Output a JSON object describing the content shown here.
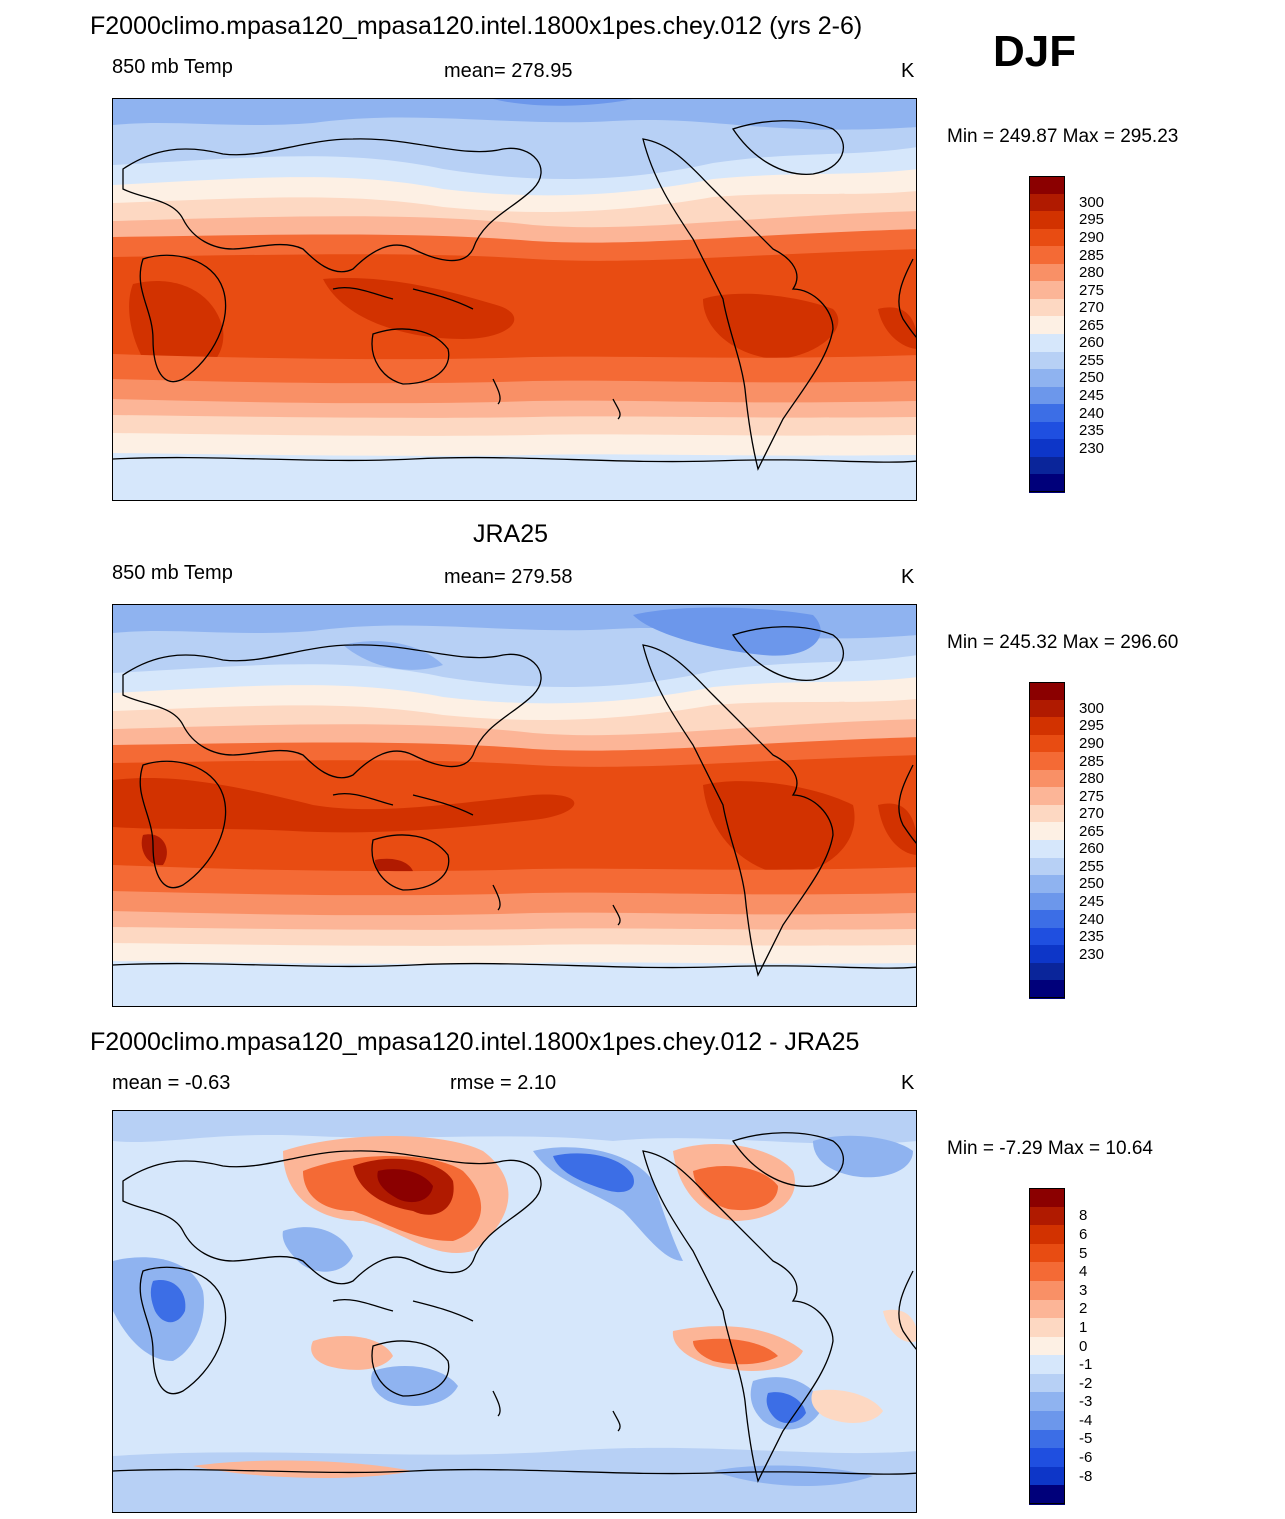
{
  "season": "DJF",
  "panels": [
    {
      "title": "F2000climo.mpasa120_mpasa120.intel.1800x1pes.chey.012 (yrs 2-6)",
      "left_label": "850 mb Temp",
      "center_label": "mean= 278.95",
      "units": "K",
      "minmax": "Min = 249.87 Max = 295.23"
    },
    {
      "title": "JRA25",
      "left_label": "850 mb Temp",
      "center_label": "mean= 279.58",
      "units": "K",
      "minmax": "Min = 245.32 Max = 296.60"
    },
    {
      "title": "F2000climo.mpasa120_mpasa120.intel.1800x1pes.chey.012 - JRA25",
      "left_label": "mean =  -0.63",
      "center_label": "rmse =   2.10",
      "units": "K",
      "minmax": "Min =  -7.29 Max =  10.64"
    }
  ],
  "colorbars": {
    "temperature": {
      "labels": [
        "300",
        "295",
        "290",
        "285",
        "280",
        "275",
        "270",
        "265",
        "260",
        "255",
        "250",
        "245",
        "240",
        "235",
        "230"
      ],
      "colors": [
        "#8b0000",
        "#b01a00",
        "#d23200",
        "#e84c12",
        "#f46a35",
        "#f99066",
        "#fcb597",
        "#fdd8c2",
        "#fdf0e4",
        "#d6e7fb",
        "#b7d0f5",
        "#8fb3f0",
        "#6c97eb",
        "#3c6ee6",
        "#1f4fe0",
        "#0d36c8",
        "#0a259a",
        "#00007a"
      ]
    },
    "difference": {
      "labels": [
        "8",
        "6",
        "5",
        "4",
        "3",
        "2",
        "1",
        "0",
        "-1",
        "-2",
        "-3",
        "-4",
        "-5",
        "-6",
        "-8"
      ],
      "colors": [
        "#8b0000",
        "#b01a00",
        "#d23200",
        "#e84c12",
        "#f46a35",
        "#f99066",
        "#fcb597",
        "#fdd8c2",
        "#fdf0e4",
        "#d6e7fb",
        "#b7d0f5",
        "#8fb3f0",
        "#6c97eb",
        "#3c6ee6",
        "#1f4fe0",
        "#0d36c8",
        "#00007a"
      ]
    }
  }
}
